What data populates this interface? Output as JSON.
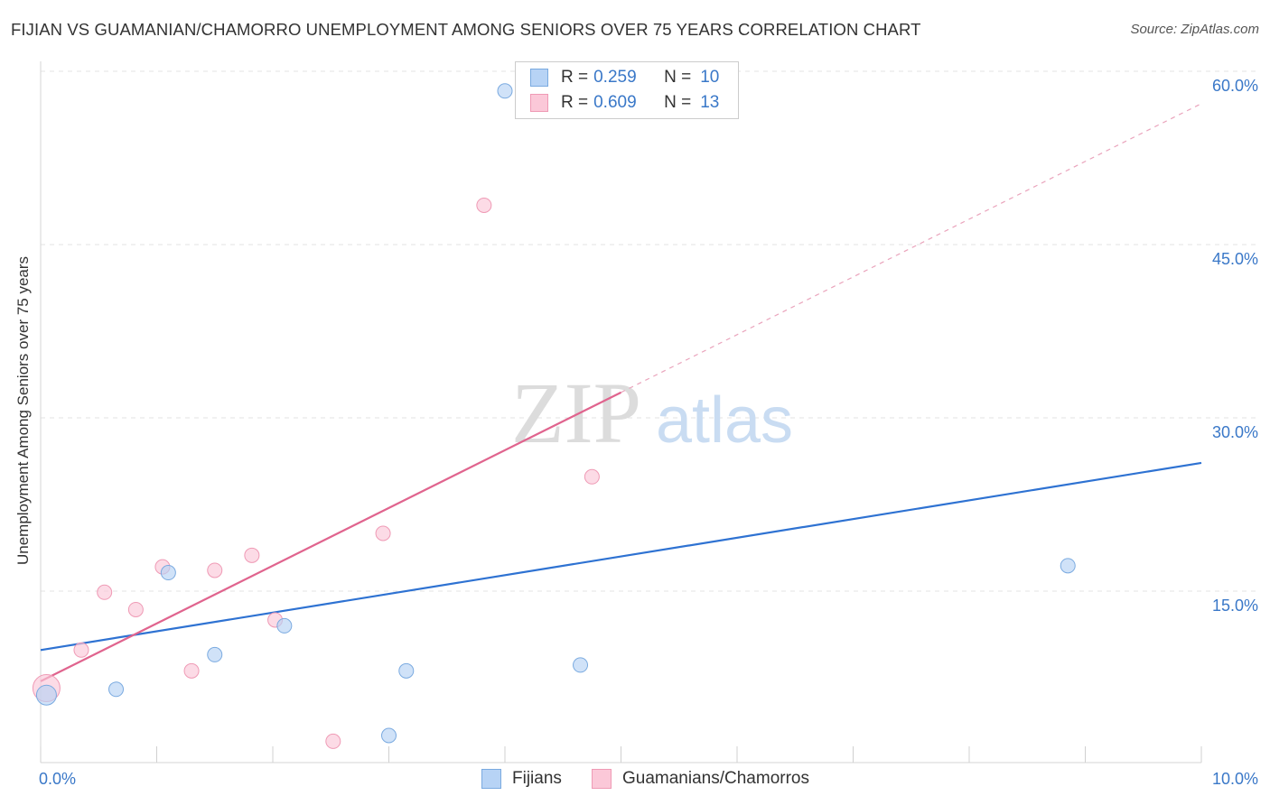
{
  "header": {
    "title": "FIJIAN VS GUAMANIAN/CHAMORRO UNEMPLOYMENT AMONG SENIORS OVER 75 YEARS CORRELATION CHART",
    "source": "Source: ZipAtlas.com"
  },
  "watermark": {
    "zip": "ZIP",
    "atlas": "atlas"
  },
  "legend": {
    "series": [
      {
        "r_label": "R =",
        "r_value": "0.259",
        "n_label": "N =",
        "n_value": "10"
      },
      {
        "r_label": "R =",
        "r_value": "0.609",
        "n_label": "N =",
        "n_value": "13"
      }
    ]
  },
  "bottom_legend": {
    "fijians": "Fijians",
    "guamanians": "Guamanians/Chamorros"
  },
  "chart_data": {
    "type": "scatter",
    "title": "FIJIAN VS GUAMANIAN/CHAMORRO UNEMPLOYMENT AMONG SENIORS OVER 75 YEARS CORRELATION CHART",
    "xlabel": "",
    "ylabel": "Unemployment Among Seniors over 75 years",
    "xlim": [
      0,
      10
    ],
    "ylim": [
      0,
      60
    ],
    "x_tick_labels": [
      "0.0%",
      "10.0%"
    ],
    "y_ticks": [
      15,
      30,
      45,
      60
    ],
    "y_tick_labels": [
      "15.0%",
      "30.0%",
      "45.0%",
      "60.0%"
    ],
    "grid": true,
    "colors": {
      "fijians_fill": "#b7d3f5",
      "fijians_stroke": "#7aaae0",
      "fijians_line": "#2e72d2",
      "guam_fill": "#fbc8d8",
      "guam_stroke": "#ef9ab5",
      "guam_line": "#e0648e",
      "axis_label": "#3a78c8"
    },
    "series": [
      {
        "name": "Fijians",
        "points": [
          {
            "x": 0.05,
            "y": 6.0,
            "size": 11
          },
          {
            "x": 0.65,
            "y": 6.5,
            "size": 8
          },
          {
            "x": 1.1,
            "y": 16.6,
            "size": 8
          },
          {
            "x": 1.5,
            "y": 9.5,
            "size": 8
          },
          {
            "x": 2.1,
            "y": 12.0,
            "size": 8
          },
          {
            "x": 3.15,
            "y": 8.1,
            "size": 8
          },
          {
            "x": 3.0,
            "y": 2.5,
            "size": 8
          },
          {
            "x": 4.0,
            "y": 58.3,
            "size": 8
          },
          {
            "x": 4.65,
            "y": 8.6,
            "size": 8
          },
          {
            "x": 8.85,
            "y": 17.2,
            "size": 8
          }
        ],
        "trend": {
          "x": [
            0,
            10
          ],
          "y": [
            9.9,
            26.1
          ]
        }
      },
      {
        "name": "Guamanians/Chamorros",
        "points": [
          {
            "x": 0.05,
            "y": 6.6,
            "size": 15
          },
          {
            "x": 0.35,
            "y": 9.9,
            "size": 8
          },
          {
            "x": 0.55,
            "y": 14.9,
            "size": 8
          },
          {
            "x": 0.82,
            "y": 13.4,
            "size": 8
          },
          {
            "x": 1.05,
            "y": 17.1,
            "size": 8
          },
          {
            "x": 1.3,
            "y": 8.1,
            "size": 8
          },
          {
            "x": 1.5,
            "y": 16.8,
            "size": 8
          },
          {
            "x": 1.82,
            "y": 18.1,
            "size": 8
          },
          {
            "x": 2.02,
            "y": 12.5,
            "size": 8
          },
          {
            "x": 2.52,
            "y": 2.0,
            "size": 8
          },
          {
            "x": 2.95,
            "y": 20.0,
            "size": 8
          },
          {
            "x": 3.82,
            "y": 48.4,
            "size": 8
          },
          {
            "x": 4.75,
            "y": 24.9,
            "size": 8
          }
        ],
        "trend": {
          "x": [
            0,
            10
          ],
          "y": [
            7.2,
            57.2
          ],
          "solid_until_x": 5.0
        }
      }
    ]
  }
}
